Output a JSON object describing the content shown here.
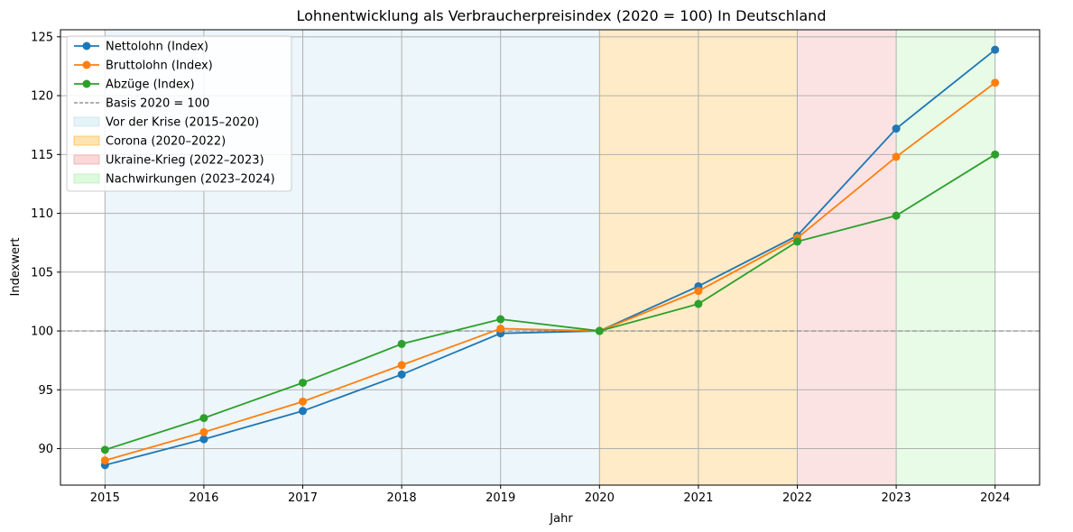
{
  "chart_data": {
    "type": "line",
    "title": "Lohnentwicklung als Verbraucherpreisindex (2020 = 100) In Deutschland",
    "xlabel": "Jahr",
    "ylabel": "Indexwert",
    "x": [
      2015,
      2016,
      2017,
      2018,
      2019,
      2020,
      2021,
      2022,
      2023,
      2024
    ],
    "xlim": [
      2014.55,
      2024.45
    ],
    "ylim": [
      86.9,
      125.6
    ],
    "yticks": [
      90,
      95,
      100,
      105,
      110,
      115,
      120,
      125
    ],
    "grid": true,
    "legend_position": "top-left",
    "series": [
      {
        "name": "Nettolohn (Index)",
        "color": "#1f77b4",
        "values": [
          88.6,
          90.8,
          93.2,
          96.3,
          99.8,
          100.0,
          103.8,
          108.1,
          117.2,
          123.9
        ]
      },
      {
        "name": "Bruttolohn (Index)",
        "color": "#ff7f0e",
        "values": [
          89.0,
          91.4,
          94.0,
          97.1,
          100.2,
          100.0,
          103.4,
          107.9,
          114.8,
          121.1
        ]
      },
      {
        "name": "Abzüge (Index)",
        "color": "#2ca02c",
        "values": [
          89.9,
          92.6,
          95.6,
          98.9,
          101.0,
          100.0,
          102.3,
          107.6,
          109.8,
          115.0
        ]
      }
    ],
    "reference_line": {
      "label": "Basis 2020 = 100",
      "value": 100,
      "color": "#808080"
    },
    "periods": [
      {
        "label": "Vor der Krise (2015–2020)",
        "start": 2015,
        "end": 2020,
        "color": "#add8e6"
      },
      {
        "label": "Corona (2020–2022)",
        "start": 2020,
        "end": 2022,
        "color": "#ffa500"
      },
      {
        "label": "Ukraine-Krieg (2022–2023)",
        "start": 2022,
        "end": 2023,
        "color": "#f08080"
      },
      {
        "label": "Nachwirkungen (2023–2024)",
        "start": 2023,
        "end": 2024,
        "color": "#90ee90"
      }
    ]
  }
}
